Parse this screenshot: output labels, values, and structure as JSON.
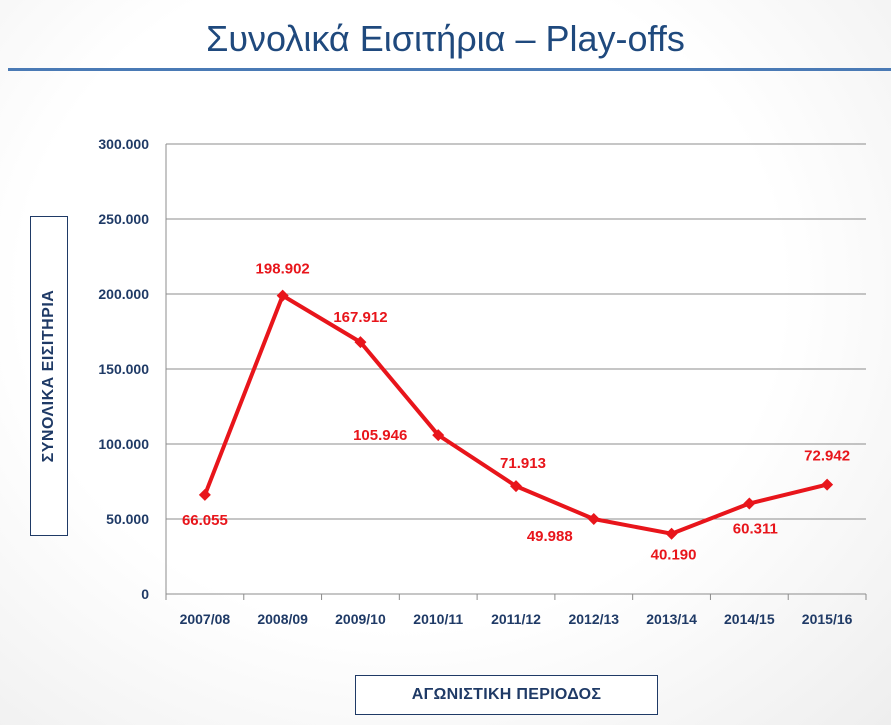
{
  "slide": {
    "title": "Συνολικά Εισιτήρια – Play-offs"
  },
  "chart_data": {
    "type": "line",
    "title": "",
    "xlabel": "ΑΓΩΝΙΣΤΙΚΗ ΠΕΡΙΟΔΟΣ",
    "ylabel": "ΣΥΝΟΛΙΚΑ ΕΙΣΙΤΗΡΙΑ",
    "categories": [
      "2007/08",
      "2008/09",
      "2009/10",
      "2010/11",
      "2011/12",
      "2012/13",
      "2013/14",
      "2014/15",
      "2015/16"
    ],
    "values": [
      66055,
      198902,
      167912,
      105946,
      71913,
      49988,
      40190,
      60311,
      72942
    ],
    "data_labels": [
      "66.055",
      "198.902",
      "167.912",
      "105.946",
      "71.913",
      "49.988",
      "40.190",
      "60.311",
      "72.942"
    ],
    "ylim": [
      0,
      300000
    ],
    "yticks": [
      0,
      50000,
      100000,
      150000,
      200000,
      250000,
      300000
    ],
    "ytick_labels": [
      "0",
      "50.000",
      "100.000",
      "150.000",
      "200.000",
      "250.000",
      "300.000"
    ],
    "grid": true,
    "series_color": "#e8151b",
    "label_color": "#e8151b",
    "axis_text_color": "#1f3a66"
  }
}
